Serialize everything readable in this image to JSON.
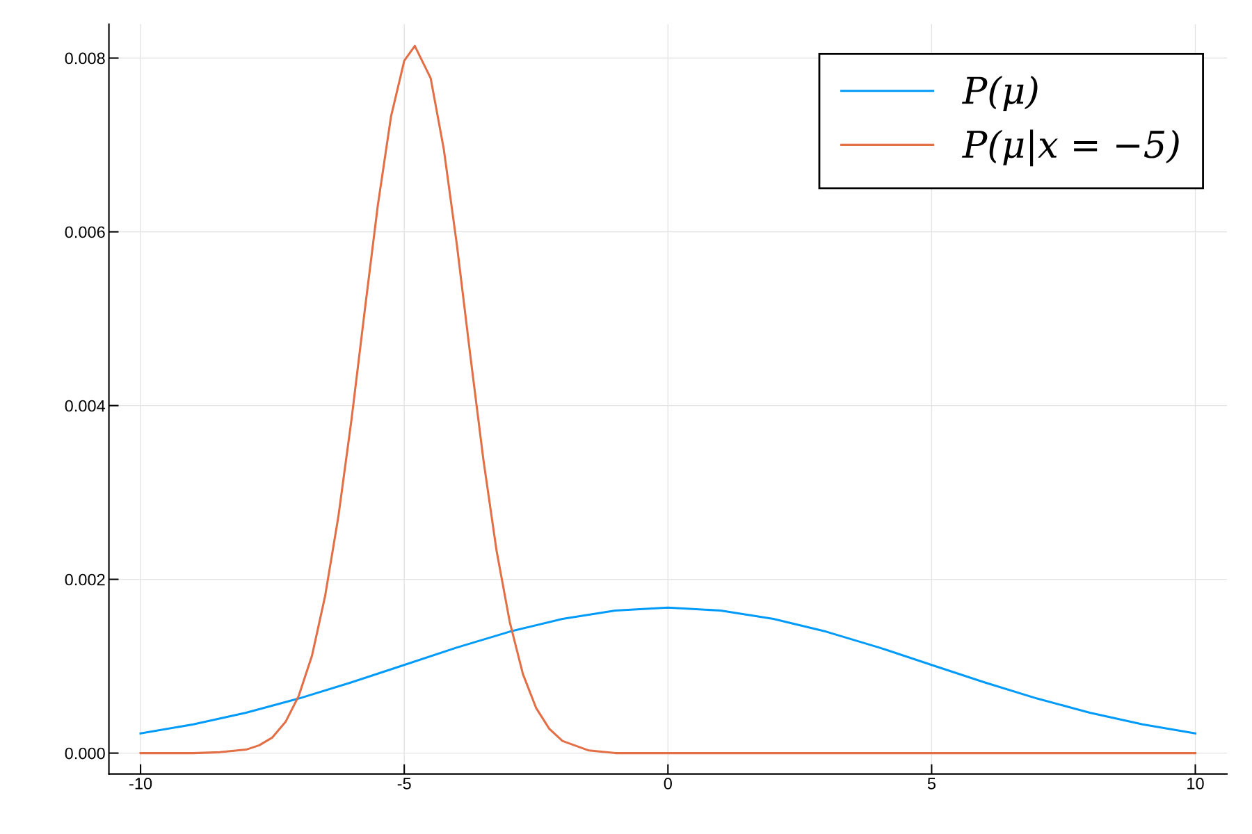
{
  "chart_data": {
    "type": "line",
    "xlim": [
      -10.6,
      10.6
    ],
    "xticks": [
      {
        "value": -10,
        "label": "-10"
      },
      {
        "value": -5,
        "label": "-5"
      },
      0,
      5,
      10
    ],
    "ylim": [
      -0.00024,
      0.00839
    ],
    "yticks": [
      {
        "value": 0,
        "label": "0.000"
      },
      {
        "value": 0.002,
        "label": "0.002"
      },
      {
        "value": 0.004,
        "label": "0.004"
      },
      {
        "value": 0.006,
        "label": "0.006"
      },
      {
        "value": 0.008,
        "label": "0.008"
      }
    ],
    "grid": true,
    "legend": "top right",
    "line_style": "solid",
    "marker": "none",
    "series": [
      {
        "name": "P(μ)",
        "color": "#009af9",
        "x": [
          -10,
          -9,
          -8,
          -7,
          -6,
          -5,
          -4,
          -3,
          -2,
          -1,
          0,
          1,
          2,
          3,
          4,
          5,
          6,
          7,
          8,
          9,
          10
        ],
        "values": [
          0.000226,
          0.000331,
          0.000465,
          0.000628,
          0.000815,
          0.001015,
          0.001216,
          0.001398,
          0.001545,
          0.001641,
          0.001674,
          0.001641,
          0.001545,
          0.001398,
          0.001216,
          0.001015,
          0.000815,
          0.000628,
          0.000465,
          0.000331,
          0.000226
        ]
      },
      {
        "name": "P(μ|x = −5)",
        "color": "#e26f46",
        "x": [
          -10,
          -9,
          -8.5,
          -8,
          -7.75,
          -7.5,
          -7.25,
          -7,
          -6.75,
          -6.5,
          -6.25,
          -6,
          -5.75,
          -5.5,
          -5.25,
          -5,
          -4.8,
          -4.5,
          -4.25,
          -4,
          -3.75,
          -3.5,
          -3.25,
          -3,
          -2.75,
          -2.5,
          -2.25,
          -2,
          -1.5,
          -1,
          0,
          5,
          10
        ],
        "values": [
          0,
          0,
          1e-05,
          4e-05,
          9e-05,
          0.00018,
          0.00036,
          0.00066,
          0.00112,
          0.00181,
          0.00272,
          0.00384,
          0.00509,
          0.00631,
          0.00733,
          0.00797,
          0.00814,
          0.00777,
          0.00695,
          0.00584,
          0.00459,
          0.00338,
          0.00233,
          0.00151,
          0.00091,
          0.00052,
          0.00028,
          0.00014,
          3e-05,
          0,
          0,
          0,
          0
        ]
      }
    ]
  }
}
